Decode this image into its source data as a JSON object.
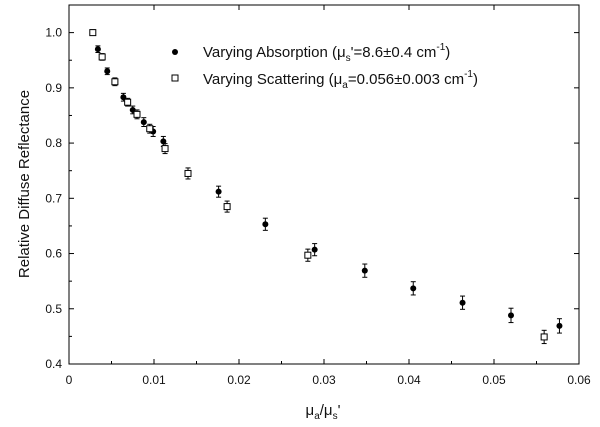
{
  "chart_data": {
    "type": "scatter",
    "xlim": [
      0,
      0.06
    ],
    "ylim": [
      0.4,
      1.05
    ],
    "x_ticks": [
      0,
      0.01,
      0.02,
      0.03,
      0.04,
      0.05,
      0.06
    ],
    "x_tick_labels": [
      "0",
      "0.01",
      "0.02",
      "0.03",
      "0.04",
      "0.05",
      "0.06"
    ],
    "y_ticks": [
      0.4,
      0.5,
      0.6,
      0.7,
      0.8,
      0.9,
      1.0
    ],
    "y_tick_labels": [
      "0.4",
      "0.5",
      "0.6",
      "0.7",
      "0.8",
      "0.9",
      "1.0"
    ],
    "xlabel": {
      "mu": "μ",
      "a": "a",
      "slash": "/",
      "s": "s",
      "prime": "'"
    },
    "ylabel": "Relative Diffuse Reflectance",
    "grid": false,
    "legend_position": "top-right",
    "series": [
      {
        "name": "Varying Absorption",
        "legend_param": {
          "mu": "μ",
          "sub": "s",
          "text": "'=8.6±0.4 cm",
          "sup": "-1",
          "close": ")"
        },
        "marker": "filled-circle",
        "points": [
          {
            "x": 0.0034,
            "y": 0.97,
            "err": 0.006
          },
          {
            "x": 0.0045,
            "y": 0.93,
            "err": 0.006
          },
          {
            "x": 0.0064,
            "y": 0.883,
            "err": 0.007
          },
          {
            "x": 0.0075,
            "y": 0.86,
            "err": 0.007
          },
          {
            "x": 0.0088,
            "y": 0.838,
            "err": 0.008
          },
          {
            "x": 0.0099,
            "y": 0.821,
            "err": 0.009
          },
          {
            "x": 0.0111,
            "y": 0.803,
            "err": 0.009
          },
          {
            "x": 0.0176,
            "y": 0.712,
            "err": 0.01
          },
          {
            "x": 0.0231,
            "y": 0.653,
            "err": 0.011
          },
          {
            "x": 0.0289,
            "y": 0.607,
            "err": 0.011
          },
          {
            "x": 0.0348,
            "y": 0.569,
            "err": 0.012
          },
          {
            "x": 0.0405,
            "y": 0.537,
            "err": 0.012
          },
          {
            "x": 0.0463,
            "y": 0.511,
            "err": 0.012
          },
          {
            "x": 0.052,
            "y": 0.488,
            "err": 0.013
          },
          {
            "x": 0.0577,
            "y": 0.469,
            "err": 0.013
          }
        ]
      },
      {
        "name": "Varying Scattering",
        "legend_param": {
          "mu": "μ",
          "sub": "a",
          "text": "=0.056±0.003 cm",
          "sup": "-1",
          "close": ")"
        },
        "marker": "open-square",
        "points": [
          {
            "x": 0.0028,
            "y": 1.0,
            "err": 0.005
          },
          {
            "x": 0.0039,
            "y": 0.956,
            "err": 0.006
          },
          {
            "x": 0.0054,
            "y": 0.911,
            "err": 0.007
          },
          {
            "x": 0.0069,
            "y": 0.874,
            "err": 0.007
          },
          {
            "x": 0.008,
            "y": 0.852,
            "err": 0.008
          },
          {
            "x": 0.0095,
            "y": 0.826,
            "err": 0.008
          },
          {
            "x": 0.0113,
            "y": 0.79,
            "err": 0.009
          },
          {
            "x": 0.014,
            "y": 0.745,
            "err": 0.01
          },
          {
            "x": 0.0186,
            "y": 0.685,
            "err": 0.01
          },
          {
            "x": 0.0281,
            "y": 0.597,
            "err": 0.011
          },
          {
            "x": 0.0559,
            "y": 0.449,
            "err": 0.012
          }
        ]
      }
    ]
  }
}
